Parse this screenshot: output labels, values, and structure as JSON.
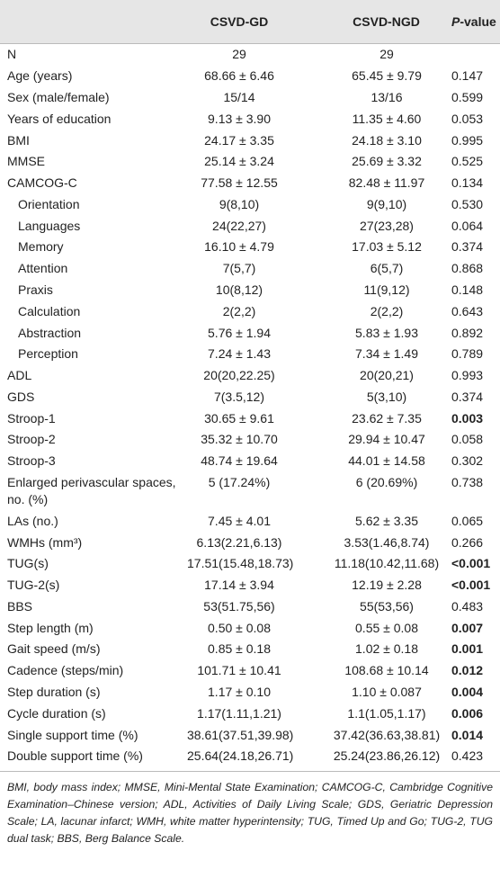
{
  "table": {
    "header": {
      "label": "",
      "gd": "CSVD-GD",
      "ngd": "CSVD-NGD",
      "p": "P-value"
    },
    "rows": [
      {
        "label": "N",
        "gd": "29",
        "ngd": "29",
        "p": ""
      },
      {
        "label": "Age (years)",
        "gd": "68.66 ± 6.46",
        "ngd": "65.45 ± 9.79",
        "p": "0.147"
      },
      {
        "label": "Sex (male/female)",
        "gd": "15/14",
        "ngd": "13/16",
        "p": "0.599"
      },
      {
        "label": "Years of education",
        "gd": "9.13 ± 3.90",
        "ngd": "11.35 ± 4.60",
        "p": "0.053"
      },
      {
        "label": "BMI",
        "gd": "24.17 ± 3.35",
        "ngd": "24.18 ± 3.10",
        "p": "0.995"
      },
      {
        "label": "MMSE",
        "gd": "25.14 ± 3.24",
        "ngd": "25.69 ± 3.32",
        "p": "0.525"
      },
      {
        "label": "CAMCOG-C",
        "gd": "77.58 ± 12.55",
        "ngd": "82.48 ± 11.97",
        "p": "0.134"
      },
      {
        "label": "Orientation",
        "gd": "9(8,10)",
        "ngd": "9(9,10)",
        "p": "0.530",
        "indent": true
      },
      {
        "label": "Languages",
        "gd": "24(22,27)",
        "ngd": "27(23,28)",
        "p": "0.064",
        "indent": true
      },
      {
        "label": "Memory",
        "gd": "16.10 ± 4.79",
        "ngd": "17.03 ± 5.12",
        "p": "0.374",
        "indent": true
      },
      {
        "label": "Attention",
        "gd": "7(5,7)",
        "ngd": "6(5,7)",
        "p": "0.868",
        "indent": true
      },
      {
        "label": "Praxis",
        "gd": "10(8,12)",
        "ngd": "11(9,12)",
        "p": "0.148",
        "indent": true
      },
      {
        "label": "Calculation",
        "gd": "2(2,2)",
        "ngd": "2(2,2)",
        "p": "0.643",
        "indent": true
      },
      {
        "label": "Abstraction",
        "gd": "5.76 ± 1.94",
        "ngd": "5.83 ± 1.93",
        "p": "0.892",
        "indent": true
      },
      {
        "label": "Perception",
        "gd": "7.24 ± 1.43",
        "ngd": "7.34 ± 1.49",
        "p": "0.789",
        "indent": true
      },
      {
        "label": "ADL",
        "gd": "20(20,22.25)",
        "ngd": "20(20,21)",
        "p": "0.993"
      },
      {
        "label": "GDS",
        "gd": "7(3.5,12)",
        "ngd": "5(3,10)",
        "p": "0.374"
      },
      {
        "label": "Stroop-1",
        "gd": "30.65 ± 9.61",
        "ngd": "23.62 ± 7.35",
        "p": "0.003",
        "bold": true
      },
      {
        "label": "Stroop-2",
        "gd": "35.32 ± 10.70",
        "ngd": "29.94 ± 10.47",
        "p": "0.058"
      },
      {
        "label": "Stroop-3",
        "gd": "48.74 ± 19.64",
        "ngd": "44.01 ± 14.58",
        "p": "0.302"
      },
      {
        "label": "Enlarged perivascular spaces, no. (%)",
        "gd": "5 (17.24%)",
        "ngd": "6 (20.69%)",
        "p": "0.738"
      },
      {
        "label": "LAs (no.)",
        "gd": "7.45 ± 4.01",
        "ngd": "5.62 ± 3.35",
        "p": "0.065"
      },
      {
        "label": "WMHs (mm³)",
        "gd": "6.13(2.21,6.13)",
        "ngd": "3.53(1.46,8.74)",
        "p": "0.266"
      },
      {
        "label": "TUG(s)",
        "gd": "17.51(15.48,18.73)",
        "ngd": "11.18(10.42,11.68)",
        "p": "<0.001",
        "bold": true
      },
      {
        "label": "TUG-2(s)",
        "gd": "17.14 ± 3.94",
        "ngd": "12.19 ± 2.28",
        "p": "<0.001",
        "bold": true
      },
      {
        "label": "BBS",
        "gd": "53(51.75,56)",
        "ngd": "55(53,56)",
        "p": "0.483"
      },
      {
        "label": "Step length (m)",
        "gd": "0.50 ± 0.08",
        "ngd": "0.55 ± 0.08",
        "p": "0.007",
        "bold": true
      },
      {
        "label": "Gait speed (m/s)",
        "gd": "0.85 ± 0.18",
        "ngd": "1.02 ± 0.18",
        "p": "0.001",
        "bold": true
      },
      {
        "label": "Cadence (steps/min)",
        "gd": "101.71 ± 10.41",
        "ngd": "108.68 ± 10.14",
        "p": "0.012",
        "bold": true
      },
      {
        "label": "Step duration (s)",
        "gd": "1.17 ± 0.10",
        "ngd": "1.10 ± 0.087",
        "p": "0.004",
        "bold": true
      },
      {
        "label": "Cycle duration (s)",
        "gd": "1.17(1.11,1.21)",
        "ngd": "1.1(1.05,1.17)",
        "p": "0.006",
        "bold": true
      },
      {
        "label": "Single support time (%)",
        "gd": "38.61(37.51,39.98)",
        "ngd": "37.42(36.63,38.81)",
        "p": "0.014",
        "bold": true
      },
      {
        "label": "Double support time (%)",
        "gd": "25.64(24.18,26.71)",
        "ngd": "25.24(23.86,26.12)",
        "p": "0.423"
      }
    ],
    "footnote": "BMI, body mass index; MMSE, Mini-Mental State Examination; CAMCOG-C, Cambridge Cognitive Examination–Chinese version; ADL, Activities of Daily Living Scale; GDS, Geriatric Depression Scale; LA, lacunar infarct; WMH, white matter hyperintensity; TUG, Timed Up and Go; TUG-2, TUG dual task; BBS, Berg Balance Scale."
  }
}
